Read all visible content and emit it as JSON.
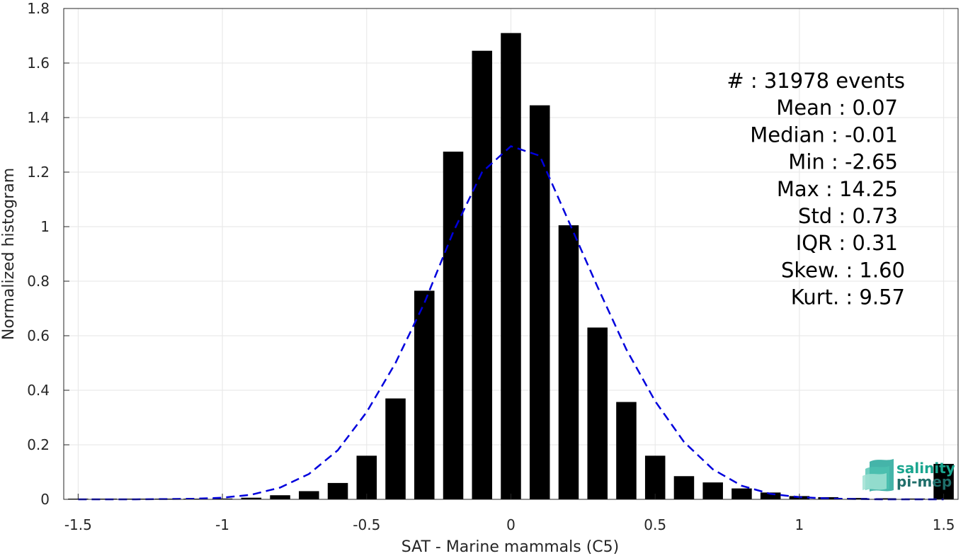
{
  "chart_data": {
    "type": "bar",
    "xlabel": "SAT - Marine mammals (C5)",
    "ylabel": "Normalized histogram",
    "xlim": [
      -1.55,
      1.55
    ],
    "ylim": [
      0,
      1.8
    ],
    "xticks": [
      -1.5,
      -1,
      -0.5,
      0,
      0.5,
      1,
      1.5
    ],
    "xtick_labels": [
      "-1.5",
      "-1",
      "-0.5",
      "0",
      "0.5",
      "1",
      "1.5"
    ],
    "yticks": [
      0,
      0.2,
      0.4,
      0.6,
      0.8,
      1,
      1.2,
      1.4,
      1.6,
      1.8
    ],
    "ytick_labels": [
      "0",
      "0.2",
      "0.4",
      "0.6",
      "0.8",
      "1",
      "1.2",
      "1.4",
      "1.6",
      "1.8"
    ],
    "grid": true,
    "bar_color": "#000000",
    "bar_width": 0.07,
    "bars": {
      "x": [
        -1.5,
        -1.4,
        -1.3,
        -1.2,
        -1.1,
        -1.0,
        -0.9,
        -0.8,
        -0.7,
        -0.6,
        -0.5,
        -0.4,
        -0.3,
        -0.2,
        -0.1,
        0.0,
        0.1,
        0.2,
        0.3,
        0.4,
        0.5,
        0.6,
        0.7,
        0.8,
        0.9,
        1.0,
        1.1,
        1.2,
        1.3,
        1.4,
        1.5
      ],
      "values": [
        0.0,
        0.0,
        0.0,
        0.0,
        0.001,
        0.003,
        0.006,
        0.015,
        0.03,
        0.06,
        0.16,
        0.37,
        0.765,
        1.275,
        1.645,
        1.71,
        1.445,
        1.005,
        0.63,
        0.357,
        0.16,
        0.085,
        0.062,
        0.04,
        0.025,
        0.012,
        0.008,
        0.005,
        0.004,
        0.003,
        0.13
      ]
    },
    "fit": {
      "color": "#0000dd",
      "style": "dashed",
      "x": [
        -1.5,
        -1.4,
        -1.3,
        -1.2,
        -1.1,
        -1.0,
        -0.9,
        -0.8,
        -0.7,
        -0.6,
        -0.5,
        -0.4,
        -0.3,
        -0.2,
        -0.1,
        0.0,
        0.1,
        0.2,
        0.3,
        0.4,
        0.5,
        0.6,
        0.7,
        0.8,
        0.9,
        1.0,
        1.1,
        1.2,
        1.3,
        1.4,
        1.5
      ],
      "values": [
        0.0,
        0.0,
        0.0,
        0.001,
        0.002,
        0.006,
        0.017,
        0.043,
        0.093,
        0.18,
        0.32,
        0.5,
        0.72,
        0.98,
        1.2,
        1.295,
        1.26,
        1.02,
        0.78,
        0.55,
        0.36,
        0.21,
        0.11,
        0.05,
        0.02,
        0.008,
        0.003,
        0.001,
        0.0,
        0.0,
        0.0
      ]
    },
    "stats_lines": [
      "#  : 31978 events",
      "Mean : 0.07",
      "Median : -0.01",
      "Min : -2.65",
      "Max : 14.25",
      "Std : 0.73",
      "IQR : 0.31",
      "Skew. : 1.60",
      "Kurt. : 9.57"
    ]
  },
  "logo": {
    "line1": "salinity",
    "line2": "pi-mep",
    "icon": "salinity-waves-icon",
    "color_top": "#1aa58f",
    "color_bottom": "#1f6e6a"
  }
}
